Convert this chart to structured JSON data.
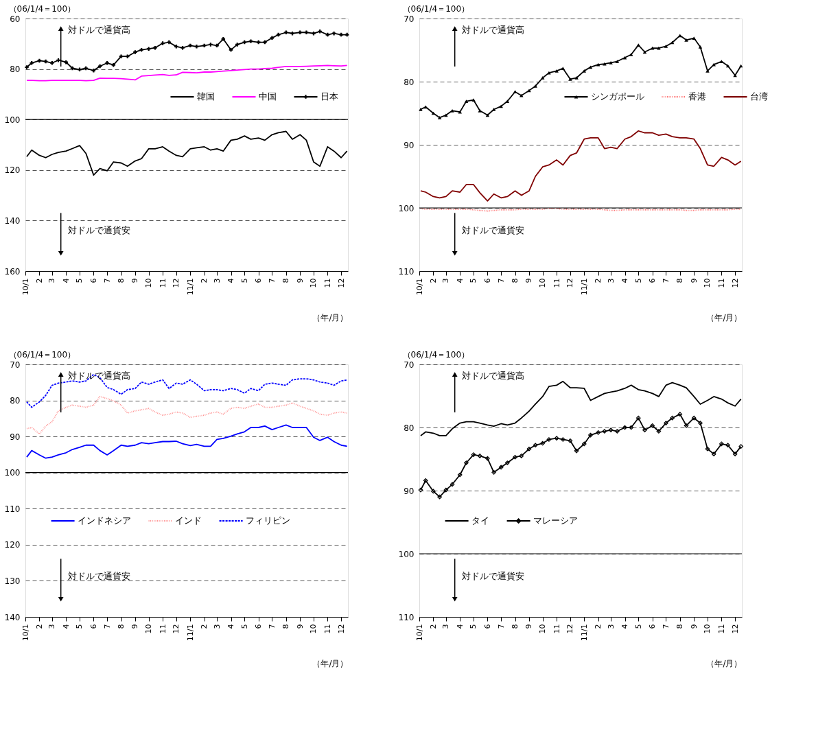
{
  "chart_data": [
    {
      "type": "line",
      "ylabel": "（06/1/4＝100）",
      "xlabel": "（年/月）",
      "annotations": [
        "対ドルで通貨高",
        "対ドルで通貨安"
      ],
      "x": [
        "2010-01-04",
        "2010-01-15",
        "2010-02-01",
        "2010-02-15",
        "2010-03-01",
        "2010-03-15",
        "2010-04-01",
        "2010-04-15",
        "2010-05-01",
        "2010-05-15",
        "2010-06-01",
        "2010-06-15",
        "2010-07-01",
        "2010-07-15",
        "2010-08-01",
        "2010-08-15",
        "2010-09-01",
        "2010-09-15",
        "2010-10-01",
        "2010-10-15",
        "2010-11-01",
        "2010-11-15",
        "2010-12-01",
        "2010-12-15",
        "2011-01-01",
        "2011-01-15",
        "2011-02-01",
        "2011-02-15",
        "2011-03-01",
        "2011-03-15",
        "2011-04-01",
        "2011-04-15",
        "2011-05-01",
        "2011-05-15",
        "2011-06-01",
        "2011-06-15",
        "2011-07-01",
        "2011-07-15",
        "2011-08-01",
        "2011-08-15",
        "2011-09-01",
        "2011-09-15",
        "2011-10-01",
        "2011-10-15",
        "2011-11-01",
        "2011-11-15",
        "2011-12-01",
        "2011-12-14"
      ],
      "xlim": [
        "2010-01-01",
        "2011-12-16"
      ],
      "xticks": [
        {
          "value": "2010-01-01",
          "label": "10/1"
        },
        {
          "value": "2010-02-01",
          "label": "2"
        },
        {
          "value": "2010-03-01",
          "label": "3"
        },
        {
          "value": "2010-04-01",
          "label": "4"
        },
        {
          "value": "2010-05-01",
          "label": "5"
        },
        {
          "value": "2010-06-01",
          "label": "6"
        },
        {
          "value": "2010-07-01",
          "label": "7"
        },
        {
          "value": "2010-08-01",
          "label": "8"
        },
        {
          "value": "2010-09-01",
          "label": "9"
        },
        {
          "value": "2010-10-01",
          "label": "10"
        },
        {
          "value": "2010-11-01",
          "label": "11"
        },
        {
          "value": "2010-12-01",
          "label": "12"
        },
        {
          "value": "2011-01-01",
          "label": "11/1"
        },
        {
          "value": "2011-02-01",
          "label": "2"
        },
        {
          "value": "2011-03-01",
          "label": "3"
        },
        {
          "value": "2011-04-01",
          "label": "4"
        },
        {
          "value": "2011-05-01",
          "label": "5"
        },
        {
          "value": "2011-06-01",
          "label": "6"
        },
        {
          "value": "2011-07-01",
          "label": "7"
        },
        {
          "value": "2011-08-01",
          "label": "8"
        },
        {
          "value": "2011-09-01",
          "label": "9"
        },
        {
          "value": "2011-10-01",
          "label": "10"
        },
        {
          "value": "2011-11-01",
          "label": "11"
        },
        {
          "value": "2011-12-01",
          "label": "12"
        }
      ],
      "ylim": [
        160,
        60
      ],
      "yticks": [
        60,
        80,
        100,
        120,
        140,
        160
      ],
      "grid": "y",
      "legend": "right",
      "ref_lines": [
        {
          "axis": "y",
          "value": 100,
          "color": "#000000",
          "line_style": "solid"
        }
      ],
      "series": [
        {
          "name": "韓国",
          "color": "#000000",
          "line_style": "solid",
          "marker": "none",
          "values": [
            114.7,
            112.1,
            114.2,
            115.1,
            113.8,
            113,
            112.5,
            111.5,
            110.3,
            113.4,
            122,
            119.4,
            120.3,
            116.8,
            117.2,
            118.5,
            116.4,
            115.5,
            111.6,
            111.6,
            110.8,
            112.5,
            114.2,
            114.7,
            111.6,
            111.2,
            110.8,
            112.1,
            111.6,
            112.5,
            108.2,
            107.8,
            106.5,
            107.8,
            107.3,
            108.2,
            106,
            105.2,
            104.7,
            107.8,
            106,
            108.2,
            116.8,
            118.5,
            110.8,
            112.5,
            115.1,
            112.5
          ]
        },
        {
          "name": "中国",
          "color": "#ff00ff",
          "line_style": "solid",
          "marker": "none",
          "values": [
            84.5,
            84.5,
            84.6,
            84.6,
            84.5,
            84.5,
            84.5,
            84.5,
            84.5,
            84.6,
            84.5,
            83.6,
            83.7,
            83.7,
            83.8,
            84.0,
            84.3,
            82.8,
            82.6,
            82.4,
            82.2,
            82.5,
            82.3,
            81.3,
            81.4,
            81.5,
            81.2,
            81.2,
            81.0,
            80.8,
            80.6,
            80.4,
            80.2,
            80.0,
            80.0,
            79.8,
            79.7,
            79.3,
            79.0,
            79.0,
            79.0,
            78.9,
            78.8,
            78.7,
            78.6,
            78.7,
            78.8,
            78.6
          ]
        },
        {
          "name": "日本",
          "color": "#000000",
          "line_style": "solid",
          "marker": "cross",
          "values": [
            79.3,
            77.6,
            76.7,
            77,
            77.6,
            76.5,
            77.3,
            79.7,
            80.2,
            79.7,
            80.6,
            78.9,
            77.6,
            78.4,
            75,
            75,
            73.3,
            72.4,
            72,
            71.6,
            69.8,
            69.4,
            71.1,
            71.6,
            70.7,
            71.1,
            70.7,
            70.3,
            70.7,
            68.1,
            72.4,
            70.3,
            69.4,
            69,
            69.4,
            69.4,
            67.7,
            66.4,
            65.5,
            65.9,
            65.5,
            65.5,
            65.9,
            65.1,
            66.4,
            65.9,
            66.4,
            66.4
          ]
        }
      ]
    },
    {
      "type": "line",
      "ylabel": "（06/1/4＝100）",
      "xlabel": "（年/月）",
      "annotations": [
        "対ドルで通貨高",
        "対ドルで通貨安"
      ],
      "x": [
        "2010-01-04",
        "2010-01-15",
        "2010-02-01",
        "2010-02-15",
        "2010-03-01",
        "2010-03-15",
        "2010-04-01",
        "2010-04-15",
        "2010-05-01",
        "2010-05-15",
        "2010-06-01",
        "2010-06-15",
        "2010-07-01",
        "2010-07-15",
        "2010-08-01",
        "2010-08-15",
        "2010-09-01",
        "2010-09-15",
        "2010-10-01",
        "2010-10-15",
        "2010-11-01",
        "2010-11-15",
        "2010-12-01",
        "2010-12-15",
        "2011-01-01",
        "2011-01-15",
        "2011-02-01",
        "2011-02-15",
        "2011-03-01",
        "2011-03-15",
        "2011-04-01",
        "2011-04-15",
        "2011-05-01",
        "2011-05-15",
        "2011-06-01",
        "2011-06-15",
        "2011-07-01",
        "2011-07-15",
        "2011-08-01",
        "2011-08-15",
        "2011-09-01",
        "2011-09-15",
        "2011-10-01",
        "2011-10-15",
        "2011-11-01",
        "2011-11-15",
        "2011-12-01",
        "2011-12-14"
      ],
      "xlim": [
        "2010-01-01",
        "2011-12-16"
      ],
      "xticks": [
        {
          "value": "2010-01-01",
          "label": "10/1"
        },
        {
          "value": "2010-02-01",
          "label": "2"
        },
        {
          "value": "2010-03-01",
          "label": "3"
        },
        {
          "value": "2010-04-01",
          "label": "4"
        },
        {
          "value": "2010-05-01",
          "label": "5"
        },
        {
          "value": "2010-06-01",
          "label": "6"
        },
        {
          "value": "2010-07-01",
          "label": "7"
        },
        {
          "value": "2010-08-01",
          "label": "8"
        },
        {
          "value": "2010-09-01",
          "label": "9"
        },
        {
          "value": "2010-10-01",
          "label": "10"
        },
        {
          "value": "2010-11-01",
          "label": "11"
        },
        {
          "value": "2010-12-01",
          "label": "12"
        },
        {
          "value": "2011-01-01",
          "label": "11/1"
        },
        {
          "value": "2011-02-01",
          "label": "2"
        },
        {
          "value": "2011-03-01",
          "label": "3"
        },
        {
          "value": "2011-04-01",
          "label": "4"
        },
        {
          "value": "2011-05-01",
          "label": "5"
        },
        {
          "value": "2011-06-01",
          "label": "6"
        },
        {
          "value": "2011-07-01",
          "label": "7"
        },
        {
          "value": "2011-08-01",
          "label": "8"
        },
        {
          "value": "2011-09-01",
          "label": "9"
        },
        {
          "value": "2011-10-01",
          "label": "10"
        },
        {
          "value": "2011-11-01",
          "label": "11"
        },
        {
          "value": "2011-12-01",
          "label": "12"
        }
      ],
      "ylim": [
        110,
        70
      ],
      "yticks": [
        70,
        80,
        90,
        100,
        110
      ],
      "grid": "y",
      "legend": "right",
      "ref_lines": [
        {
          "axis": "y",
          "value": 100,
          "color": "#000000",
          "line_style": "solid"
        }
      ],
      "series": [
        {
          "name": "シンガポール",
          "color": "#000000",
          "line_style": "solid",
          "marker": "triangle",
          "values": [
            84.4,
            84.0,
            85,
            85.7,
            85.3,
            84.6,
            84.8,
            83.1,
            82.9,
            84.6,
            85.3,
            84.4,
            83.9,
            83.1,
            81.6,
            82.2,
            81.4,
            80.7,
            79.4,
            78.6,
            78.3,
            77.9,
            79.6,
            79.4,
            78.3,
            77.7,
            77.3,
            77.2,
            77,
            76.8,
            76.2,
            75.7,
            74.2,
            75.3,
            74.7,
            74.7,
            74.4,
            73.8,
            72.7,
            73.4,
            73.1,
            74.5,
            78.3,
            77.3,
            76.8,
            77.5,
            79,
            77.5
          ]
        },
        {
          "name": "香港",
          "color": "#ff7070",
          "line_style": "dotted",
          "marker": "none",
          "values": [
            100.1,
            100.2,
            100.2,
            100.2,
            100.2,
            100.2,
            100.2,
            100.2,
            100.3,
            100.4,
            100.5,
            100.4,
            100.3,
            100.3,
            100.3,
            100.2,
            100.2,
            100.2,
            100.2,
            100.1,
            100.1,
            100.2,
            100.2,
            100.2,
            100.2,
            100.2,
            100.2,
            100.3,
            100.4,
            100.4,
            100.3,
            100.3,
            100.3,
            100.3,
            100.3,
            100.3,
            100.3,
            100.3,
            100.3,
            100.4,
            100.4,
            100.3,
            100.3,
            100.3,
            100.3,
            100.3,
            100.2,
            100.2
          ]
        },
        {
          "name": "台湾",
          "color": "#800000",
          "line_style": "solid",
          "marker": "none",
          "values": [
            97.3,
            97.5,
            98.2,
            98.4,
            98.2,
            97.3,
            97.5,
            96.3,
            96.3,
            97.6,
            98.9,
            97.8,
            98.4,
            98.2,
            97.3,
            98,
            97.3,
            95,
            93.5,
            93.2,
            92.4,
            93.2,
            91.7,
            91.3,
            89.1,
            88.9,
            88.9,
            90.6,
            90.4,
            90.6,
            89.1,
            88.7,
            87.8,
            88.1,
            88.1,
            88.5,
            88.3,
            88.7,
            88.9,
            88.9,
            89.1,
            90.6,
            93.2,
            93.4,
            92,
            92.4,
            93.2,
            92.6
          ]
        }
      ]
    },
    {
      "type": "line",
      "ylabel": "（06/1/4＝100）",
      "xlabel": "（年/月）",
      "annotations": [
        "対ドルで通貨高",
        "対ドルで通貨安"
      ],
      "x": [
        "2010-01-04",
        "2010-01-15",
        "2010-02-01",
        "2010-02-15",
        "2010-03-01",
        "2010-03-15",
        "2010-04-01",
        "2010-04-15",
        "2010-05-01",
        "2010-05-15",
        "2010-06-01",
        "2010-06-15",
        "2010-07-01",
        "2010-07-15",
        "2010-08-01",
        "2010-08-15",
        "2010-09-01",
        "2010-09-15",
        "2010-10-01",
        "2010-10-15",
        "2010-11-01",
        "2010-11-15",
        "2010-12-01",
        "2010-12-15",
        "2011-01-01",
        "2011-01-15",
        "2011-02-01",
        "2011-02-15",
        "2011-03-01",
        "2011-03-15",
        "2011-04-01",
        "2011-04-15",
        "2011-05-01",
        "2011-05-15",
        "2011-06-01",
        "2011-06-15",
        "2011-07-01",
        "2011-07-15",
        "2011-08-01",
        "2011-08-15",
        "2011-09-01",
        "2011-09-15",
        "2011-10-01",
        "2011-10-15",
        "2011-11-01",
        "2011-11-15",
        "2011-12-01",
        "2011-12-14"
      ],
      "xlim": [
        "2010-01-01",
        "2011-12-16"
      ],
      "xticks": [
        {
          "value": "2010-01-01",
          "label": "10/1"
        },
        {
          "value": "2010-02-01",
          "label": "2"
        },
        {
          "value": "2010-03-01",
          "label": "3"
        },
        {
          "value": "2010-04-01",
          "label": "4"
        },
        {
          "value": "2010-05-01",
          "label": "5"
        },
        {
          "value": "2010-06-01",
          "label": "6"
        },
        {
          "value": "2010-07-01",
          "label": "7"
        },
        {
          "value": "2010-08-01",
          "label": "8"
        },
        {
          "value": "2010-09-01",
          "label": "9"
        },
        {
          "value": "2010-10-01",
          "label": "10"
        },
        {
          "value": "2010-11-01",
          "label": "11"
        },
        {
          "value": "2010-12-01",
          "label": "12"
        },
        {
          "value": "2011-01-01",
          "label": "11/1"
        },
        {
          "value": "2011-02-01",
          "label": "2"
        },
        {
          "value": "2011-03-01",
          "label": "3"
        },
        {
          "value": "2011-04-01",
          "label": "4"
        },
        {
          "value": "2011-05-01",
          "label": "5"
        },
        {
          "value": "2011-06-01",
          "label": "6"
        },
        {
          "value": "2011-07-01",
          "label": "7"
        },
        {
          "value": "2011-08-01",
          "label": "8"
        },
        {
          "value": "2011-09-01",
          "label": "9"
        },
        {
          "value": "2011-10-01",
          "label": "10"
        },
        {
          "value": "2011-11-01",
          "label": "11"
        },
        {
          "value": "2011-12-01",
          "label": "12"
        }
      ],
      "ylim": [
        140,
        70
      ],
      "yticks": [
        70,
        80,
        90,
        100,
        110,
        120,
        130,
        140
      ],
      "grid": "y",
      "legend": "center",
      "ref_lines": [
        {
          "axis": "y",
          "value": 100,
          "color": "#000000",
          "line_style": "solid"
        }
      ],
      "series": [
        {
          "name": "インドネシア",
          "color": "#0000ff",
          "line_style": "solid",
          "marker": "none",
          "values": [
            95.7,
            93.9,
            95.1,
            96,
            95.7,
            95.1,
            94.5,
            93.6,
            93,
            92.4,
            92.4,
            93.9,
            95.1,
            93.9,
            92.4,
            92.7,
            92.4,
            91.7,
            92,
            91.7,
            91.4,
            91.4,
            91.3,
            92,
            92.5,
            92.2,
            92.7,
            92.7,
            90.8,
            90.5,
            89.9,
            89.3,
            88.7,
            87.5,
            87.5,
            87.1,
            88.1,
            87.5,
            86.8,
            87.5,
            87.5,
            87.5,
            90.2,
            91.1,
            90.2,
            91.4,
            92.4,
            92.7
          ]
        },
        {
          "name": "インド",
          "color": "#ff9090",
          "line_style": "dotted",
          "marker": "none",
          "values": [
            87.8,
            87.5,
            89.3,
            87.1,
            85.9,
            82.9,
            81.9,
            81.3,
            81.6,
            81.9,
            81.3,
            78.9,
            79.5,
            80.1,
            81.3,
            83.5,
            82.9,
            82.6,
            82.2,
            83.2,
            84.1,
            83.8,
            83.2,
            83.5,
            84.7,
            84.4,
            84.1,
            83.5,
            83.2,
            83.8,
            82.2,
            81.9,
            82.2,
            81.6,
            81,
            81.9,
            81.9,
            81.6,
            81.3,
            80.7,
            81.6,
            82.2,
            82.9,
            83.8,
            84.1,
            83.5,
            83.2,
            83.5
          ]
        },
        {
          "name": "フィリピン",
          "color": "#0000ff",
          "line_style": "dashed",
          "marker": "none",
          "values": [
            80.4,
            81.9,
            80.4,
            78.6,
            75.8,
            75.2,
            74.9,
            74.6,
            74.9,
            74.6,
            72.8,
            73.7,
            76.4,
            77,
            78.3,
            77,
            76.7,
            74.9,
            75.5,
            74.9,
            74.3,
            76.7,
            75.2,
            75.5,
            74.3,
            75.5,
            77.3,
            77,
            77,
            77.3,
            76.7,
            77,
            78,
            76.7,
            77.3,
            75.5,
            75.2,
            75.5,
            75.8,
            74.3,
            74,
            74,
            74.3,
            74.9,
            75.2,
            75.8,
            74.6,
            74.3
          ]
        }
      ]
    },
    {
      "type": "line",
      "ylabel": "（06/1/4＝100）",
      "xlabel": "（年/月）",
      "annotations": [
        "対ドルで通貨高",
        "対ドルで通貨安"
      ],
      "x": [
        "2010-01-04",
        "2010-01-15",
        "2010-02-01",
        "2010-02-15",
        "2010-03-01",
        "2010-03-15",
        "2010-04-01",
        "2010-04-15",
        "2010-05-01",
        "2010-05-15",
        "2010-06-01",
        "2010-06-15",
        "2010-07-01",
        "2010-07-15",
        "2010-08-01",
        "2010-08-15",
        "2010-09-01",
        "2010-09-15",
        "2010-10-01",
        "2010-10-15",
        "2010-11-01",
        "2010-11-15",
        "2010-12-01",
        "2010-12-15",
        "2011-01-01",
        "2011-01-15",
        "2011-02-01",
        "2011-02-15",
        "2011-03-01",
        "2011-03-15",
        "2011-04-01",
        "2011-04-15",
        "2011-05-01",
        "2011-05-15",
        "2011-06-01",
        "2011-06-15",
        "2011-07-01",
        "2011-07-15",
        "2011-08-01",
        "2011-08-15",
        "2011-09-01",
        "2011-09-15",
        "2011-10-01",
        "2011-10-15",
        "2011-11-01",
        "2011-11-15",
        "2011-12-01",
        "2011-12-14"
      ],
      "xlim": [
        "2010-01-01",
        "2011-12-16"
      ],
      "xticks": [
        {
          "value": "2010-01-01",
          "label": "10/1"
        },
        {
          "value": "2010-02-01",
          "label": "2"
        },
        {
          "value": "2010-03-01",
          "label": "3"
        },
        {
          "value": "2010-04-01",
          "label": "4"
        },
        {
          "value": "2010-05-01",
          "label": "5"
        },
        {
          "value": "2010-06-01",
          "label": "6"
        },
        {
          "value": "2010-07-01",
          "label": "7"
        },
        {
          "value": "2010-08-01",
          "label": "8"
        },
        {
          "value": "2010-09-01",
          "label": "9"
        },
        {
          "value": "2010-10-01",
          "label": "10"
        },
        {
          "value": "2010-11-01",
          "label": "11"
        },
        {
          "value": "2010-12-01",
          "label": "12"
        },
        {
          "value": "2011-01-01",
          "label": "11/1"
        },
        {
          "value": "2011-02-01",
          "label": "2"
        },
        {
          "value": "2011-03-01",
          "label": "3"
        },
        {
          "value": "2011-04-01",
          "label": "4"
        },
        {
          "value": "2011-05-01",
          "label": "5"
        },
        {
          "value": "2011-06-01",
          "label": "6"
        },
        {
          "value": "2011-07-01",
          "label": "7"
        },
        {
          "value": "2011-08-01",
          "label": "8"
        },
        {
          "value": "2011-09-01",
          "label": "9"
        },
        {
          "value": "2011-10-01",
          "label": "10"
        },
        {
          "value": "2011-11-01",
          "label": "11"
        },
        {
          "value": "2011-12-01",
          "label": "12"
        }
      ],
      "ylim": [
        110,
        70
      ],
      "yticks": [
        70,
        80,
        90,
        100,
        110
      ],
      "grid": "y",
      "legend": "center",
      "ref_lines": [
        {
          "axis": "y",
          "value": 100,
          "color": "#000000",
          "line_style": "solid"
        }
      ],
      "series": [
        {
          "name": "タイ",
          "color": "#000000",
          "line_style": "solid",
          "marker": "none",
          "values": [
            81.3,
            80.7,
            80.9,
            81.3,
            81.3,
            80.2,
            79.3,
            79.1,
            79.1,
            79.3,
            79.6,
            79.8,
            79.4,
            79.6,
            79.3,
            78.5,
            77.4,
            76.3,
            75.1,
            73.5,
            73.3,
            72.7,
            73.7,
            73.7,
            73.8,
            75.7,
            75.1,
            74.6,
            74.4,
            74.2,
            73.8,
            73.3,
            74,
            74.2,
            74.6,
            75.1,
            73.3,
            72.9,
            73.3,
            73.7,
            75.1,
            76.3,
            75.7,
            75.1,
            75.5,
            76.1,
            76.6,
            75.5
          ]
        },
        {
          "name": "マレーシア",
          "color": "#000000",
          "line_style": "solid",
          "marker": "diamond",
          "values": [
            89.9,
            88.4,
            90.1,
            91,
            89.9,
            89,
            87.5,
            85.6,
            84.3,
            84.5,
            84.9,
            87.1,
            86.3,
            85.6,
            84.7,
            84.5,
            83.4,
            82.8,
            82.5,
            81.9,
            81.7,
            81.9,
            82.1,
            83.7,
            82.6,
            81.2,
            80.8,
            80.6,
            80.4,
            80.6,
            80,
            80,
            78.5,
            80.4,
            79.7,
            80.6,
            79.3,
            78.5,
            77.9,
            79.7,
            78.5,
            79.3,
            83.4,
            84.2,
            82.6,
            82.8,
            84.2,
            83
          ]
        }
      ]
    }
  ]
}
